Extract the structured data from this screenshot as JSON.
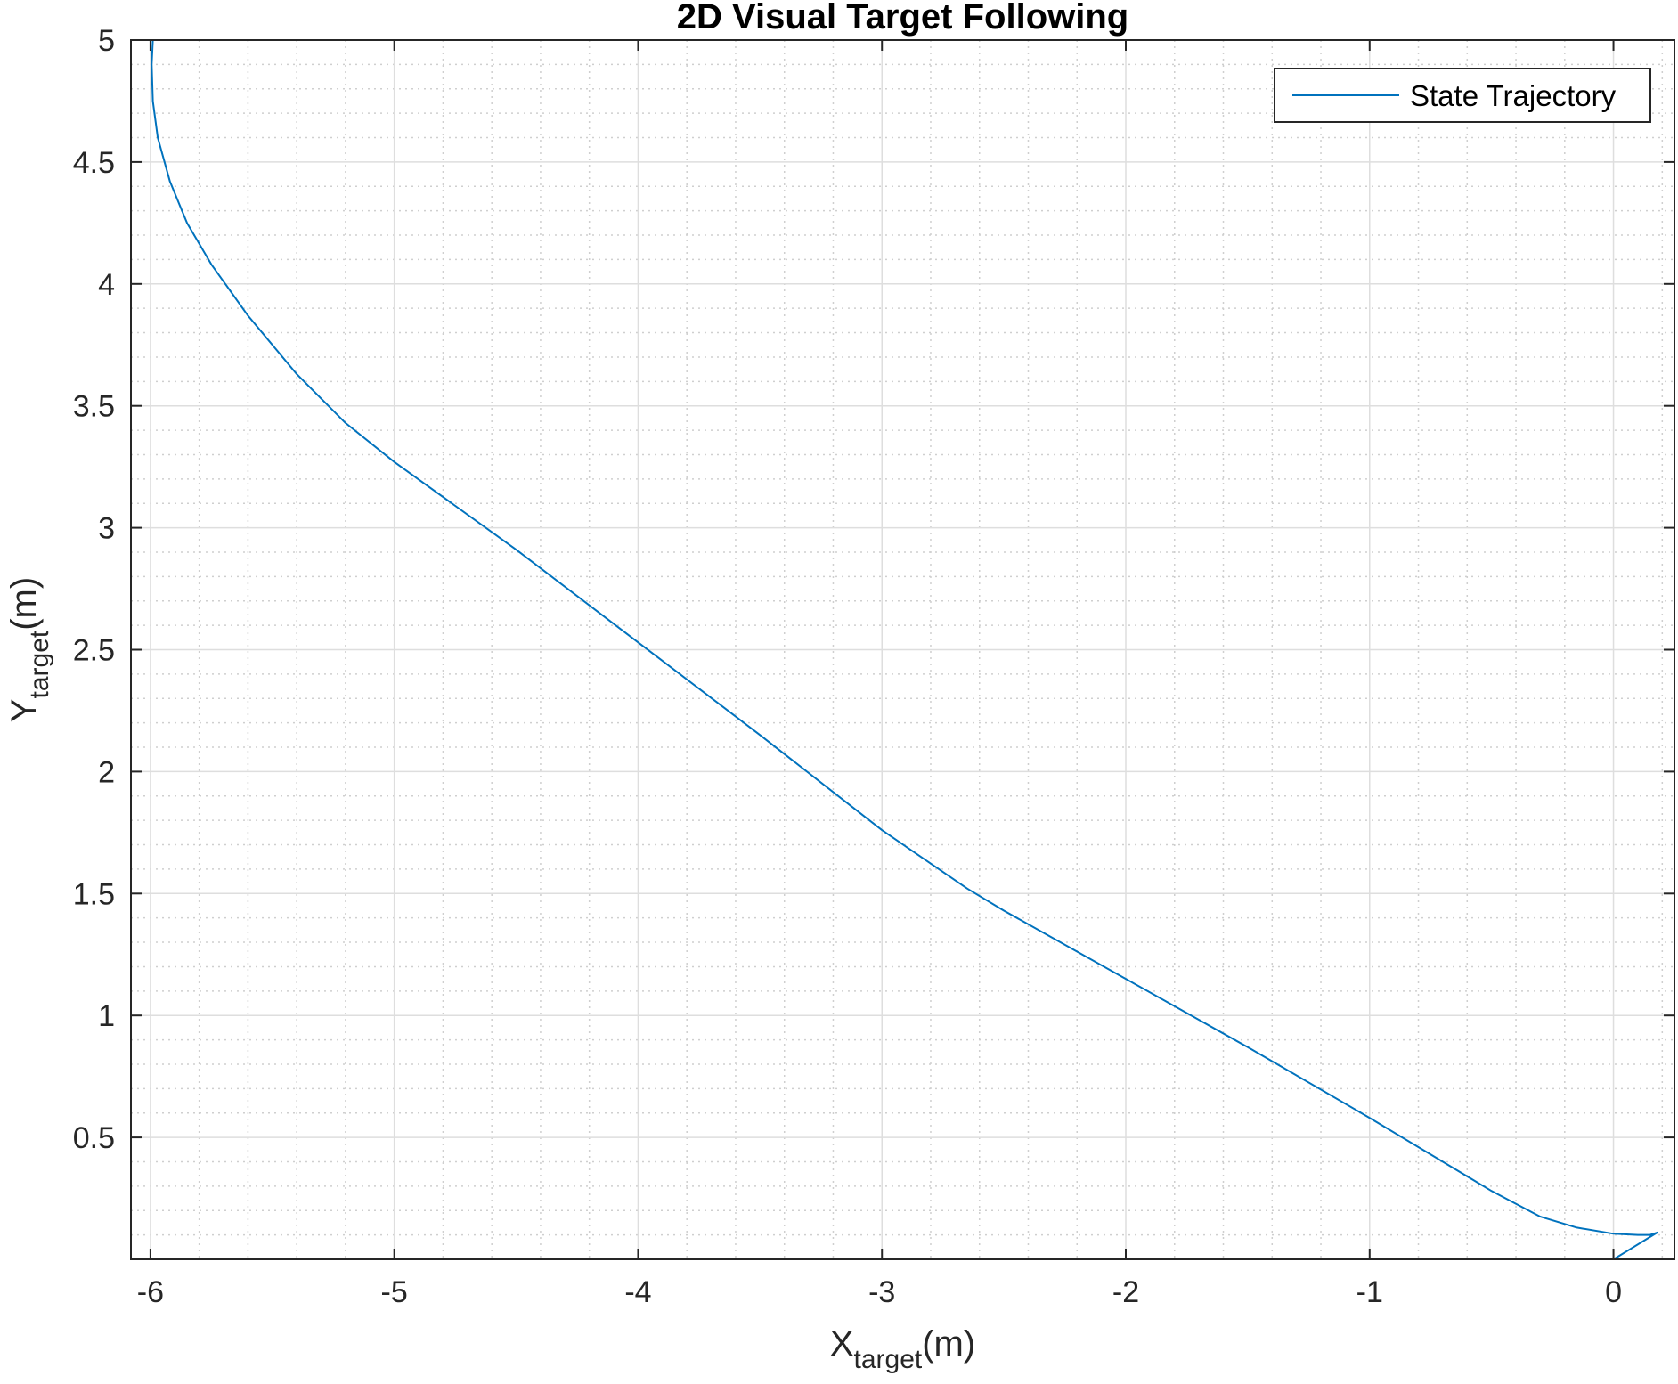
{
  "chart_data": {
    "type": "line",
    "title": "2D Visual Target Following",
    "xlabel": {
      "main": "X",
      "sub": "target",
      "unit": "(m)"
    },
    "ylabel": {
      "main": "Y",
      "sub": "target",
      "unit": "(m)"
    },
    "xlim": [
      -6.08,
      0.25
    ],
    "ylim": [
      0.0,
      5.0
    ],
    "xticks": [
      -6,
      -5,
      -4,
      -3,
      -2,
      -1,
      0
    ],
    "xtick_labels": [
      "-6",
      "-5",
      "-4",
      "-3",
      "-2",
      "-1",
      "0"
    ],
    "yticks": [
      0.5,
      1,
      1.5,
      2,
      2.5,
      3,
      3.5,
      4,
      4.5,
      5
    ],
    "ytick_labels": [
      "0.5",
      "1",
      "1.5",
      "2",
      "2.5",
      "3",
      "3.5",
      "4",
      "4.5",
      "5"
    ],
    "grid": true,
    "minor_grid": true,
    "legend_position": "top-right",
    "series": [
      {
        "name": "State Trajectory",
        "color": "#0072BD",
        "x": [
          -5.99,
          -5.995,
          -5.99,
          -5.97,
          -5.92,
          -5.85,
          -5.75,
          -5.6,
          -5.4,
          -5.2,
          -5.0,
          -4.5,
          -4.0,
          -3.5,
          -3.0,
          -2.65,
          -2.5,
          -2.0,
          -1.5,
          -1.0,
          -0.5,
          -0.3,
          -0.15,
          0.0,
          0.1,
          0.15,
          0.18,
          0.0
        ],
        "y": [
          5.0,
          4.9,
          4.75,
          4.6,
          4.42,
          4.25,
          4.08,
          3.87,
          3.63,
          3.43,
          3.27,
          2.91,
          2.53,
          2.15,
          1.76,
          1.52,
          1.43,
          1.15,
          0.87,
          0.58,
          0.28,
          0.175,
          0.13,
          0.105,
          0.1,
          0.1,
          0.11,
          0.0
        ]
      }
    ]
  }
}
